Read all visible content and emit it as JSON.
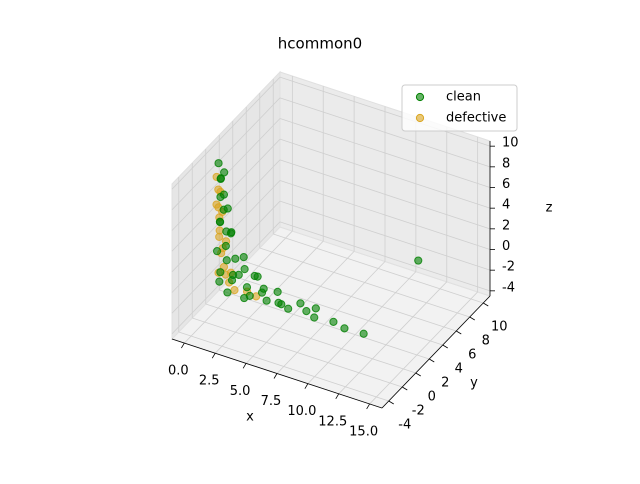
{
  "chart_data": {
    "type": "scatter3d",
    "title": "hcommon0",
    "xlabel": "x",
    "ylabel": "y",
    "zlabel": "z",
    "xlim": [
      -1,
      16
    ],
    "ylim": [
      -5,
      11
    ],
    "zlim": [
      -4.5,
      10.5
    ],
    "xticks": [
      {
        "value": 0,
        "label": "0.0"
      },
      2.5,
      {
        "value": 5,
        "label": "5.0"
      },
      7.5,
      {
        "value": 10,
        "label": "10.0"
      },
      12.5,
      {
        "value": 15,
        "label": "15.0"
      }
    ],
    "yticks": [
      -4,
      -2,
      0,
      2,
      4,
      6,
      8,
      10
    ],
    "zticks": [
      -4,
      -2,
      0,
      2,
      4,
      6,
      8,
      10
    ],
    "grid": true,
    "legend": "upper right",
    "series": [
      {
        "name": "clean",
        "color": "#008000",
        "x": [
          0.2,
          0.5,
          0.1,
          0.8,
          0.3,
          1.0,
          0.4,
          0.6,
          0.2,
          1.2,
          0.5,
          0.9,
          0.3,
          1.5,
          0.7,
          2.0,
          0.4,
          1.1,
          2.5,
          3.0,
          3.5,
          4.2,
          5.0,
          6.0,
          7.2,
          8.0,
          9.5,
          10.5,
          1.8,
          2.2,
          2.8,
          3.8,
          4.6,
          5.5,
          1.3,
          0.8,
          2.6,
          0.1,
          6.5,
          15.0,
          0.6,
          1.4,
          3.2,
          7.8,
          12.0
        ],
        "y": [
          -0.3,
          -0.5,
          0.2,
          -0.6,
          -0.2,
          -0.4,
          0.1,
          -0.8,
          -0.1,
          -0.3,
          0.3,
          -0.5,
          -0.7,
          -0.2,
          0.0,
          -0.6,
          -0.4,
          0.2,
          -0.3,
          -0.8,
          0.1,
          -0.5,
          -0.2,
          -0.6,
          -0.1,
          -0.4,
          -0.3,
          -0.5,
          0.5,
          -0.1,
          0.3,
          -0.2,
          0.4,
          -0.7,
          -1.0,
          0.6,
          -0.9,
          0.0,
          0.3,
          2.2,
          -0.2,
          -0.6,
          0.0,
          0.2,
          -0.4
        ],
        "z": [
          9.8,
          8.6,
          7.9,
          7.2,
          6.5,
          5.8,
          5.1,
          4.6,
          4.0,
          3.4,
          2.9,
          2.2,
          1.6,
          1.0,
          0.4,
          -0.1,
          -0.6,
          -1.0,
          -1.3,
          -1.6,
          -1.7,
          -1.8,
          -1.9,
          -1.8,
          -1.9,
          -2.0,
          -1.9,
          -2.0,
          0.8,
          0.2,
          -0.5,
          -1.0,
          -1.4,
          -1.5,
          -1.8,
          -1.9,
          -1.9,
          -1.9,
          -1.7,
          4.5,
          9.0,
          3.8,
          -0.2,
          -1.6,
          -2.0
        ]
      },
      {
        "name": "defective",
        "color": "#daa520",
        "x": [
          0.1,
          0.3,
          0.2,
          0.5,
          0.1,
          0.4,
          0.2,
          0.6,
          0.3,
          0.8,
          0.2,
          1.0,
          1.6,
          2.4,
          0.5,
          3.3,
          0.4,
          0.7,
          1.2,
          0.3
        ],
        "y": [
          -0.4,
          -0.2,
          -0.6,
          -0.3,
          0.0,
          -0.5,
          -0.2,
          -0.4,
          -0.1,
          -0.6,
          -0.3,
          -0.2,
          -0.5,
          -0.1,
          0.2,
          -0.4,
          -0.7,
          -0.1,
          -0.3,
          -0.5
        ],
        "z": [
          8.5,
          7.0,
          6.0,
          5.2,
          4.3,
          3.5,
          2.6,
          1.8,
          1.0,
          0.2,
          -0.8,
          -1.5,
          -1.8,
          -1.9,
          -1.2,
          -1.8,
          7.6,
          2.3,
          -0.4,
          5.7
        ]
      }
    ]
  }
}
